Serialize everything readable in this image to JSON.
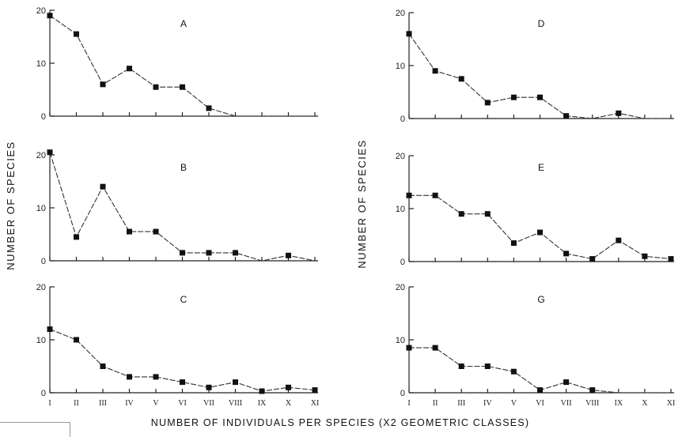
{
  "figure": {
    "y_axis_label": "NUMBER OF SPECIES",
    "x_axis_label": "NUMBER OF INDIVIDUALS PER SPECIES (X2 GEOMETRIC CLASSES)"
  },
  "chart_data": [
    {
      "type": "line",
      "panel": "A",
      "categories": [
        "I",
        "II",
        "III",
        "IV",
        "V",
        "VI",
        "VII",
        "VIII",
        "IX",
        "X",
        "XI"
      ],
      "values": [
        19,
        15.5,
        6,
        9,
        5.5,
        5.5,
        1.5,
        0,
        0,
        0,
        0
      ],
      "ylim": [
        0,
        20
      ],
      "yticks": [
        "0",
        "10",
        "20"
      ],
      "xlabels_shown": false
    },
    {
      "type": "line",
      "panel": "B",
      "categories": [
        "I",
        "II",
        "III",
        "IV",
        "V",
        "VI",
        "VII",
        "VIII",
        "IX",
        "X",
        "XI"
      ],
      "values": [
        20.5,
        4.5,
        14,
        5.5,
        5.5,
        1.5,
        1.5,
        1.5,
        0,
        1,
        0
      ],
      "ylim": [
        0,
        20
      ],
      "yticks": [
        "0",
        "10",
        "20"
      ],
      "xlabels_shown": false
    },
    {
      "type": "line",
      "panel": "C",
      "categories": [
        "I",
        "II",
        "III",
        "IV",
        "V",
        "VI",
        "VII",
        "VIII",
        "IX",
        "X",
        "XI"
      ],
      "values": [
        12,
        10,
        5,
        3,
        3,
        2,
        1,
        2,
        0.3,
        1,
        0.5
      ],
      "ylim": [
        0,
        20
      ],
      "yticks": [
        "0",
        "10",
        "20"
      ],
      "xlabels_shown": true
    },
    {
      "type": "line",
      "panel": "D",
      "categories": [
        "I",
        "II",
        "III",
        "IV",
        "V",
        "VI",
        "VII",
        "VIII",
        "IX",
        "X",
        "XI"
      ],
      "values": [
        16,
        9,
        7.5,
        3,
        4,
        4,
        0.5,
        0,
        1,
        0,
        0
      ],
      "ylim": [
        0,
        20
      ],
      "yticks": [
        "0",
        "10",
        "20"
      ],
      "xlabels_shown": false
    },
    {
      "type": "line",
      "panel": "E",
      "categories": [
        "I",
        "II",
        "III",
        "IV",
        "V",
        "VI",
        "VII",
        "VIII",
        "IX",
        "X",
        "XI"
      ],
      "values": [
        12.5,
        12.5,
        9,
        9,
        3.5,
        5.5,
        1.5,
        0.5,
        4,
        1,
        0.5
      ],
      "ylim": [
        0,
        20
      ],
      "yticks": [
        "0",
        "10",
        "20"
      ],
      "xlabels_shown": false
    },
    {
      "type": "line",
      "panel": "G",
      "categories": [
        "I",
        "II",
        "III",
        "IV",
        "V",
        "VI",
        "VII",
        "VIII",
        "IX",
        "X",
        "XI"
      ],
      "values": [
        8.5,
        8.5,
        5,
        5,
        4,
        0.5,
        2,
        0.5,
        0,
        0,
        0
      ],
      "ylim": [
        0,
        20
      ],
      "yticks": [
        "0",
        "10",
        "20"
      ],
      "xlabels_shown": true
    }
  ]
}
